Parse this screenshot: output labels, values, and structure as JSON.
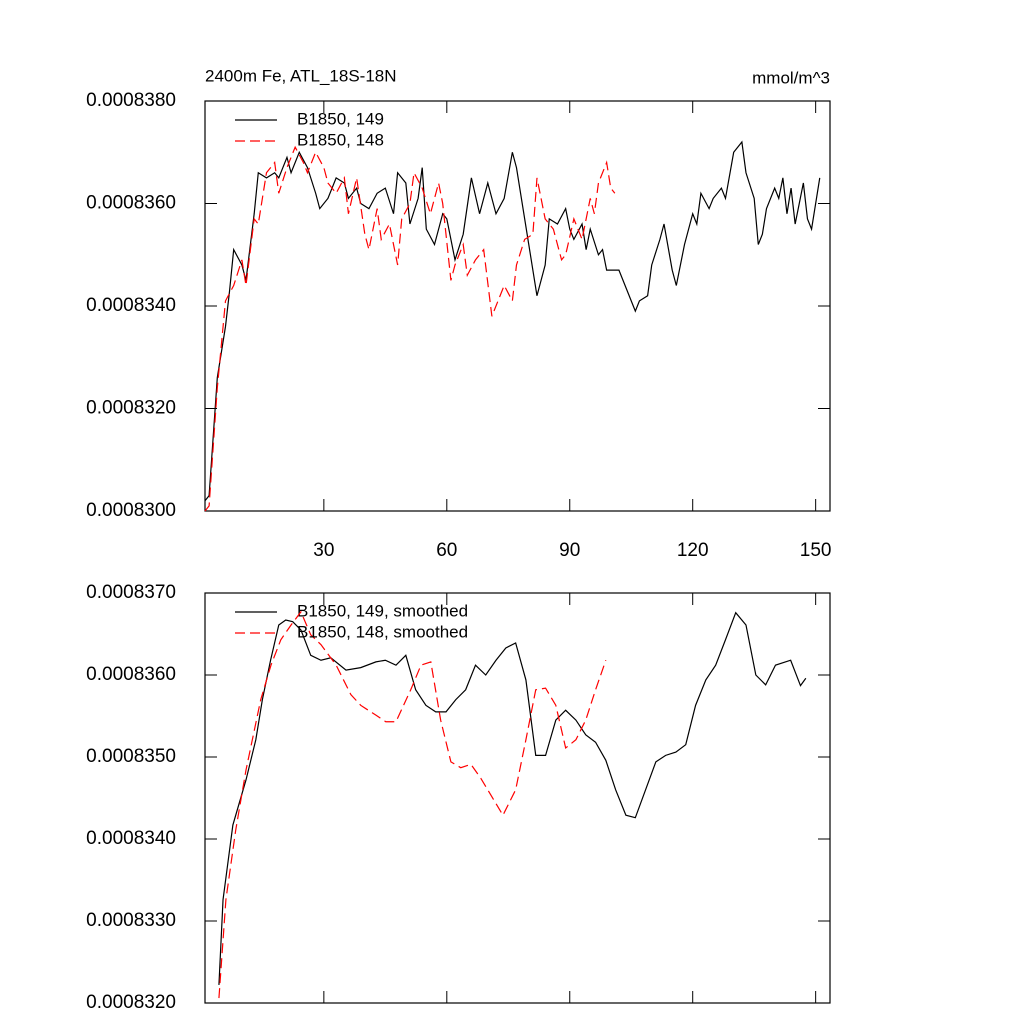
{
  "chart_data": [
    {
      "type": "line",
      "title": "2400m Fe, ATL_18S-18N",
      "units": "mmol/m^3",
      "xlim": [
        1,
        153.5
      ],
      "xticks": [
        30,
        60,
        90,
        120,
        150
      ],
      "show_xtick_labels": true,
      "ylim": [
        0.00083,
        0.000838
      ],
      "yticks": [
        {
          "value": 0.00083,
          "label": "0.0008300"
        },
        {
          "value": 0.000832,
          "label": "0.0008320"
        },
        {
          "value": 0.000834,
          "label": "0.0008340"
        },
        {
          "value": 0.000836,
          "label": "0.0008360"
        },
        {
          "value": 0.000838,
          "label": "0.0008380"
        }
      ],
      "series": [
        {
          "name": "B1850, 149",
          "color": "#000000",
          "line_style": "solid",
          "x": [
            1,
            2,
            4,
            6,
            7,
            8,
            10,
            11,
            13,
            14,
            16,
            18,
            19,
            21,
            22,
            24,
            26,
            28,
            29,
            31,
            33,
            35,
            36,
            38,
            39,
            41,
            43,
            45,
            47,
            48,
            50,
            51,
            53,
            54,
            55,
            57,
            59,
            60,
            62,
            64,
            66,
            68,
            70,
            72,
            74,
            76,
            77,
            79,
            80,
            82,
            84,
            85,
            87,
            89,
            90,
            91,
            93,
            94,
            95,
            97,
            98,
            99,
            101,
            102,
            104,
            106,
            107,
            109,
            110,
            112,
            113,
            115,
            116,
            118,
            120,
            121,
            122,
            124,
            125,
            127,
            128,
            130,
            132,
            133,
            135,
            136,
            137,
            138,
            140,
            141,
            142,
            143,
            144,
            145,
            147,
            148,
            149,
            151
          ],
          "values": [
            0.0008302,
            0.0008303,
            0.0008326,
            0.0008336,
            0.0008343,
            0.0008351,
            0.0008348,
            0.0008345,
            0.0008358,
            0.0008366,
            0.0008365,
            0.0008366,
            0.0008365,
            0.0008369,
            0.0008366,
            0.000837,
            0.0008367,
            0.0008362,
            0.0008359,
            0.0008361,
            0.0008365,
            0.0008364,
            0.0008361,
            0.0008363,
            0.000836,
            0.0008359,
            0.0008362,
            0.0008363,
            0.0008358,
            0.0008366,
            0.0008364,
            0.0008356,
            0.0008361,
            0.0008367,
            0.0008355,
            0.0008352,
            0.0008358,
            0.0008357,
            0.0008349,
            0.0008354,
            0.0008365,
            0.0008358,
            0.0008364,
            0.0008358,
            0.0008361,
            0.000837,
            0.0008367,
            0.0008357,
            0.0008352,
            0.0008342,
            0.0008348,
            0.0008357,
            0.0008356,
            0.0008359,
            0.0008355,
            0.0008353,
            0.0008356,
            0.0008351,
            0.0008355,
            0.000835,
            0.0008351,
            0.0008347,
            0.0008347,
            0.0008347,
            0.0008343,
            0.0008339,
            0.0008341,
            0.0008342,
            0.0008348,
            0.0008353,
            0.0008356,
            0.0008347,
            0.0008344,
            0.0008352,
            0.0008358,
            0.0008356,
            0.0008362,
            0.0008359,
            0.0008361,
            0.0008363,
            0.0008361,
            0.000837,
            0.0008372,
            0.0008366,
            0.0008361,
            0.0008352,
            0.0008354,
            0.0008359,
            0.0008363,
            0.0008361,
            0.0008365,
            0.0008358,
            0.0008363,
            0.0008356,
            0.0008364,
            0.0008357,
            0.0008355,
            0.0008365
          ]
        },
        {
          "name": "B1850, 148",
          "color": "#ff0000",
          "line_style": "dashed",
          "x": [
            1,
            2,
            4,
            6,
            8,
            10,
            11,
            13,
            14,
            16,
            18,
            19,
            21,
            23,
            25,
            26,
            28,
            30,
            31,
            33,
            35,
            36,
            38,
            40,
            41,
            43,
            44,
            46,
            48,
            49,
            51,
            52,
            54,
            56,
            58,
            59,
            61,
            62,
            64,
            65,
            67,
            69,
            71,
            73,
            74,
            76,
            77,
            79,
            81,
            82,
            84,
            86,
            88,
            89,
            91,
            93,
            95,
            96,
            97,
            99,
            100,
            101
          ],
          "values": [
            0.00083,
            0.0008301,
            0.0008324,
            0.0008341,
            0.0008344,
            0.0008349,
            0.0008344,
            0.0008357,
            0.0008356,
            0.0008366,
            0.0008368,
            0.0008362,
            0.0008367,
            0.0008371,
            0.0008368,
            0.0008366,
            0.000837,
            0.0008367,
            0.0008364,
            0.0008362,
            0.0008365,
            0.0008358,
            0.0008365,
            0.0008354,
            0.0008351,
            0.0008359,
            0.0008353,
            0.0008356,
            0.0008348,
            0.0008357,
            0.000836,
            0.0008366,
            0.0008363,
            0.0008358,
            0.0008364,
            0.000836,
            0.0008345,
            0.0008348,
            0.0008352,
            0.0008346,
            0.0008349,
            0.0008351,
            0.0008338,
            0.0008342,
            0.0008344,
            0.0008341,
            0.0008348,
            0.0008353,
            0.0008354,
            0.0008365,
            0.0008357,
            0.0008355,
            0.0008349,
            0.000835,
            0.0008357,
            0.0008353,
            0.0008361,
            0.0008358,
            0.0008364,
            0.0008368,
            0.0008363,
            0.0008362
          ]
        }
      ]
    },
    {
      "type": "line",
      "xlim": [
        1,
        153.5
      ],
      "xticks": [
        30,
        60,
        90,
        120,
        150
      ],
      "show_xtick_labels": false,
      "ylim": [
        0.000832,
        0.000837
      ],
      "yticks": [
        {
          "value": 0.000832,
          "label": "0.0008320"
        },
        {
          "value": 0.000833,
          "label": "0.0008330"
        },
        {
          "value": 0.000834,
          "label": "0.0008340"
        },
        {
          "value": 0.000835,
          "label": "0.0008350"
        },
        {
          "value": 0.000836,
          "label": "0.0008360"
        },
        {
          "value": 0.000837,
          "label": "0.0008370"
        }
      ],
      "series": [
        {
          "name": "B1850, 149, smoothed",
          "color": "#000000",
          "line_style": "solid",
          "x": [
            4.4,
            5.4,
            7.8,
            11,
            13.4,
            15,
            17,
            19,
            20.7,
            22.4,
            24.4,
            26.8,
            29.3,
            31.7,
            35.4,
            39,
            42.7,
            45,
            47.6,
            50,
            52.4,
            54.9,
            57.3,
            59.8,
            62.2,
            64.6,
            67,
            69.5,
            72,
            74.4,
            76.8,
            79.3,
            81.7,
            84.1,
            86.6,
            89,
            91.5,
            93.9,
            96.3,
            98.8,
            101.2,
            103.7,
            106,
            108.5,
            111,
            113.4,
            115.9,
            118.3,
            120.7,
            123.2,
            125.6,
            128,
            130.5,
            133,
            135.4,
            137.8,
            140.2,
            143.9,
            146.3,
            147.6
          ],
          "values": [
            0.00083222,
            0.00083326,
            0.00083417,
            0.00083472,
            0.00083521,
            0.0008357,
            0.00083618,
            0.00083661,
            0.00083667,
            0.00083665,
            0.00083655,
            0.00083624,
            0.00083618,
            0.00083621,
            0.00083606,
            0.00083609,
            0.00083616,
            0.00083618,
            0.00083612,
            0.00083624,
            0.00083582,
            0.00083563,
            0.00083555,
            0.00083555,
            0.0008357,
            0.00083582,
            0.00083612,
            0.000836,
            0.00083618,
            0.00083633,
            0.00083639,
            0.00083594,
            0.00083502,
            0.00083502,
            0.00083545,
            0.00083557,
            0.00083545,
            0.00083527,
            0.00083518,
            0.00083496,
            0.0008346,
            0.00083429,
            0.00083426,
            0.0008346,
            0.00083494,
            0.00083502,
            0.00083506,
            0.00083515,
            0.00083563,
            0.00083594,
            0.00083612,
            0.00083643,
            0.00083676,
            0.00083661,
            0.000836,
            0.00083588,
            0.00083612,
            0.00083618,
            0.00083587,
            0.00083596
          ]
        },
        {
          "name": "B1850, 148, smoothed",
          "color": "#ff0000",
          "line_style": "dashed",
          "x": [
            4.4,
            6.1,
            8.5,
            11,
            14.6,
            17.1,
            19.5,
            22,
            24.4,
            26.8,
            29.3,
            33,
            36.6,
            39,
            42.7,
            45.1,
            47.6,
            51.2,
            53.7,
            56.1,
            58.5,
            61,
            63.4,
            65.9,
            68.3,
            70.7,
            73.7,
            76.8,
            79.3,
            81.7,
            84.1,
            86.6,
            89,
            91.5,
            93.9,
            96.3,
            98.8
          ],
          "values": [
            0.00083206,
            0.00083326,
            0.00083411,
            0.00083484,
            0.0008357,
            0.00083612,
            0.00083643,
            0.00083661,
            0.00083677,
            0.00083649,
            0.00083637,
            0.00083612,
            0.00083576,
            0.00083563,
            0.00083551,
            0.00083543,
            0.00083543,
            0.00083582,
            0.00083612,
            0.00083616,
            0.00083545,
            0.00083494,
            0.00083487,
            0.00083491,
            0.00083474,
            0.00083454,
            0.00083429,
            0.0008346,
            0.00083521,
            0.00083582,
            0.00083584,
            0.00083563,
            0.00083511,
            0.00083521,
            0.00083545,
            0.00083582,
            0.00083618
          ]
        }
      ]
    }
  ]
}
